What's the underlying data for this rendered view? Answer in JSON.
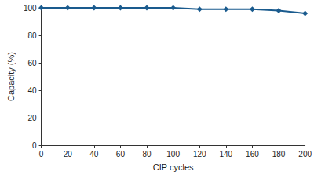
{
  "chart_data": {
    "type": "line",
    "x_label": "CIP cycles",
    "y_label": "Capacity (%)",
    "x": [
      0,
      20,
      40,
      60,
      80,
      100,
      120,
      140,
      160,
      180,
      200
    ],
    "values": [
      100,
      100,
      100,
      100,
      100,
      100,
      99,
      99,
      99,
      98,
      96
    ],
    "color": "#1a5b8e",
    "marker": "diamond",
    "xlim": [
      0,
      200
    ],
    "xticks": [
      0,
      20,
      40,
      60,
      80,
      100,
      120,
      140,
      160,
      180,
      200
    ],
    "ylim": [
      0,
      100
    ],
    "yticks": [
      0,
      20,
      40,
      60,
      80,
      100
    ],
    "grid": false
  }
}
